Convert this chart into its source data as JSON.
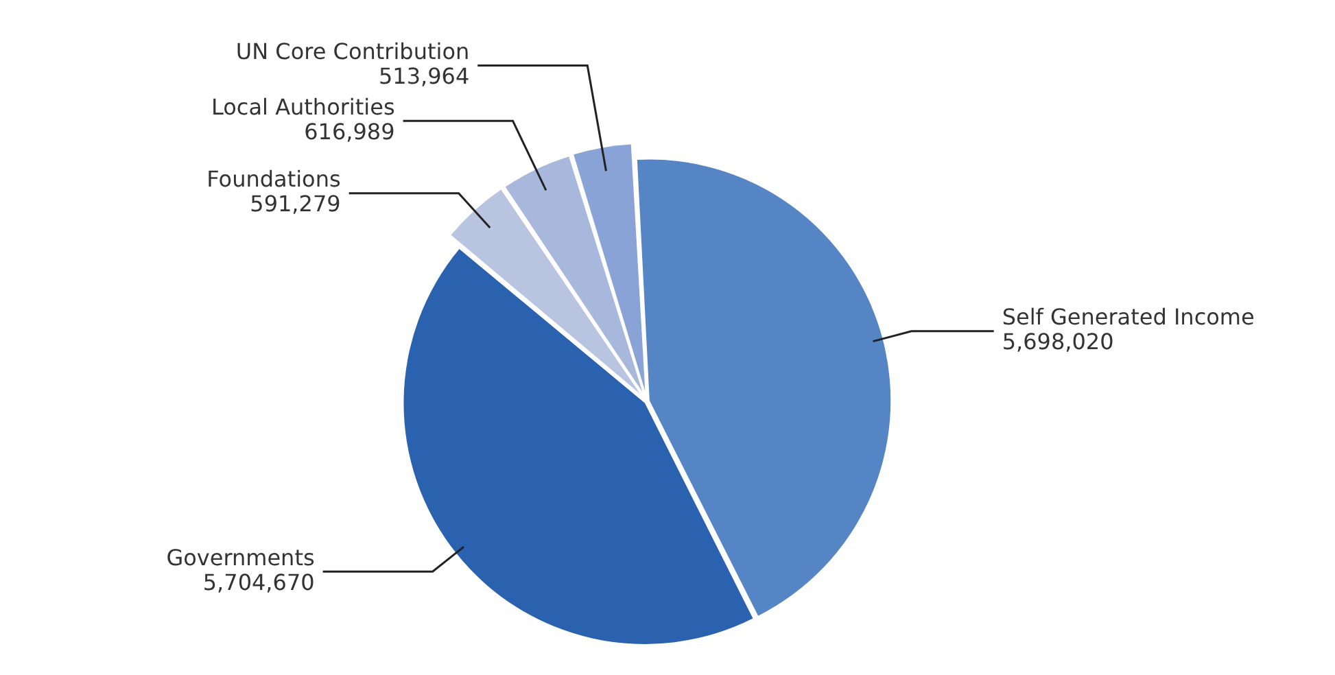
{
  "chart_data": {
    "type": "pie",
    "categories": [
      "Self Generated Income",
      "Governments",
      "Foundations",
      "Local Authorities",
      "UN Core Contribution"
    ],
    "values": [
      5698020,
      5704670,
      591279,
      616989,
      513964
    ],
    "colors": [
      "#5585c5",
      "#2a62b0",
      "#b8c4e0",
      "#a8b8dc",
      "#8aa3d6"
    ],
    "value_labels": [
      "5,698,020",
      "5,704,670",
      "591,279",
      "616,989",
      "513,964"
    ],
    "legend": false
  }
}
